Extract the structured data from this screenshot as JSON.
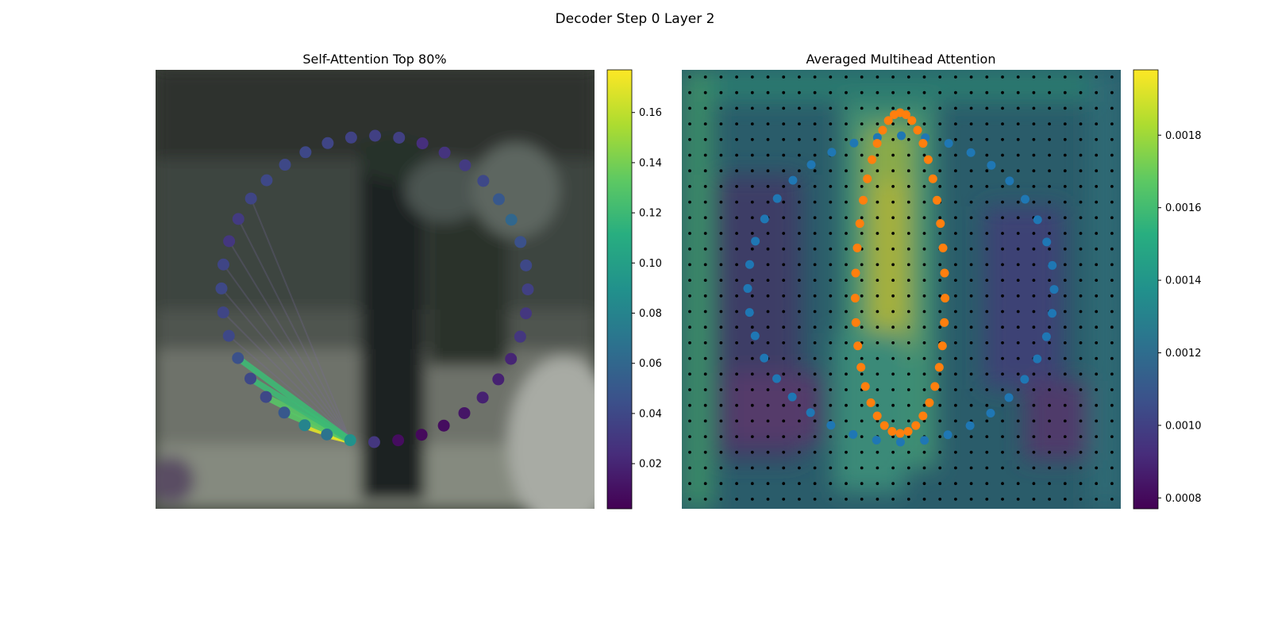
{
  "figure": {
    "suptitle": "Decoder Step 0 Layer 2"
  },
  "chart_data": [
    {
      "type": "scatter",
      "title": "Self-Attention Top 80%",
      "background": "blurred street photograph (two people standing, parked car)",
      "n_points": 40,
      "circle_order": "points arranged on a contour, index 0 at the bottom-center, proceeding clockwise toward the left",
      "points_attention": [
        0.09,
        0.068,
        0.08,
        0.05,
        0.04,
        0.04,
        0.045,
        0.04,
        0.038,
        0.04,
        0.038,
        0.03,
        0.032,
        0.038,
        0.04,
        0.04,
        0.04,
        0.038,
        0.036,
        0.035,
        0.035,
        0.025,
        0.028,
        0.032,
        0.04,
        0.05,
        0.06,
        0.045,
        0.04,
        0.035,
        0.03,
        0.03,
        0.02,
        0.018,
        0.018,
        0.012,
        0.008,
        0.006,
        0.008,
        0.03
      ],
      "query_index": 0,
      "attention_lines": [
        {
          "to": 1,
          "weight": 0.17
        },
        {
          "to": 2,
          "weight": 0.17
        },
        {
          "to": 3,
          "weight": 0.13
        },
        {
          "to": 4,
          "weight": 0.13
        },
        {
          "to": 5,
          "weight": 0.12
        },
        {
          "to": 6,
          "weight": 0.12
        }
      ],
      "colorbar": {
        "colormap": "viridis",
        "vmin": 0.002,
        "vmax": 0.177,
        "ticks": [
          {
            "value": 0.02,
            "label": "0.02"
          },
          {
            "value": 0.04,
            "label": "0.04"
          },
          {
            "value": 0.06,
            "label": "0.06"
          },
          {
            "value": 0.08,
            "label": "0.08"
          },
          {
            "value": 0.1,
            "label": "0.10"
          },
          {
            "value": 0.12,
            "label": "0.12"
          },
          {
            "value": 0.14,
            "label": "0.14"
          },
          {
            "value": 0.16,
            "label": "0.16"
          }
        ]
      }
    },
    {
      "type": "heatmap",
      "title": "Averaged Multihead Attention",
      "grid_points": "28 x 28 regular black dot grid overlaid on heatmap",
      "series": [
        {
          "color": "#1f77b4",
          "description": "reference contour points (40)"
        },
        {
          "color": "#ff7f0e",
          "description": "predicted contour points (40)"
        }
      ],
      "colorbar": {
        "colormap": "viridis",
        "vmin": 0.00077,
        "vmax": 0.00198,
        "ticks": [
          {
            "value": 0.0008,
            "label": "0.0008"
          },
          {
            "value": 0.001,
            "label": "0.0010"
          },
          {
            "value": 0.0012,
            "label": "0.0012"
          },
          {
            "value": 0.0014,
            "label": "0.0014"
          },
          {
            "value": 0.0016,
            "label": "0.0016"
          },
          {
            "value": 0.0018,
            "label": "0.0018"
          }
        ]
      }
    }
  ]
}
